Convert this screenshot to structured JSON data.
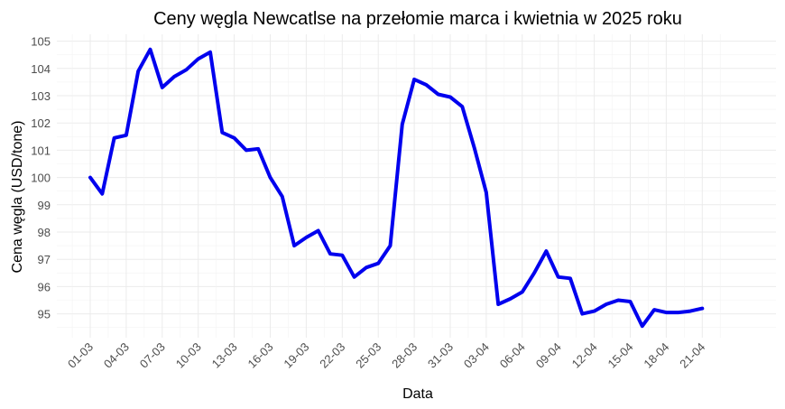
{
  "chart_data": {
    "type": "line",
    "title": "Ceny węgla Newcatlse na przełomie marca i kwietnia w 2025 roku",
    "xlabel": "Data",
    "ylabel": "Cena węgla (USD/tone)",
    "ylim": [
      94.2,
      105.3
    ],
    "y_ticks": [
      95,
      96,
      97,
      98,
      99,
      100,
      101,
      102,
      103,
      104,
      105
    ],
    "x_ticks": [
      "01-03",
      "04-03",
      "07-03",
      "10-03",
      "13-03",
      "16-03",
      "19-03",
      "22-03",
      "25-03",
      "28-03",
      "31-03",
      "03-04",
      "06-04",
      "09-04",
      "12-04",
      "15-04",
      "18-04",
      "21-04"
    ],
    "grid": true,
    "line_color": "#0000ee",
    "series": [
      {
        "x": [
          "01-03",
          "02-03",
          "03-03",
          "04-03",
          "05-03",
          "06-03",
          "07-03",
          "08-03",
          "09-03",
          "10-03",
          "11-03",
          "12-03",
          "13-03",
          "14-03",
          "15-03",
          "16-03",
          "17-03",
          "18-03",
          "19-03",
          "20-03",
          "21-03",
          "22-03",
          "23-03",
          "24-03",
          "25-03",
          "26-03",
          "27-03",
          "28-03",
          "29-03",
          "30-03",
          "31-03",
          "01-04",
          "02-04",
          "03-04",
          "04-04",
          "05-04",
          "06-04",
          "07-04",
          "08-04",
          "09-04",
          "10-04",
          "11-04",
          "12-04",
          "13-04",
          "14-04",
          "15-04",
          "16-04",
          "17-04",
          "18-04",
          "19-04",
          "20-04",
          "21-04"
        ],
        "values": [
          100.0,
          99.4,
          101.45,
          101.55,
          103.9,
          104.7,
          103.3,
          103.7,
          103.95,
          104.35,
          104.6,
          101.65,
          101.45,
          101.0,
          101.05,
          100.0,
          99.3,
          97.5,
          97.8,
          98.05,
          97.2,
          97.15,
          96.35,
          96.7,
          96.85,
          97.5,
          101.95,
          103.6,
          103.4,
          103.05,
          102.95,
          102.6,
          101.1,
          99.45,
          95.35,
          95.55,
          95.8,
          96.5,
          97.3,
          96.35,
          96.3,
          95.0,
          95.1,
          95.35,
          95.5,
          95.45,
          94.55,
          95.15,
          95.05,
          95.05,
          95.1,
          95.2
        ]
      }
    ]
  }
}
